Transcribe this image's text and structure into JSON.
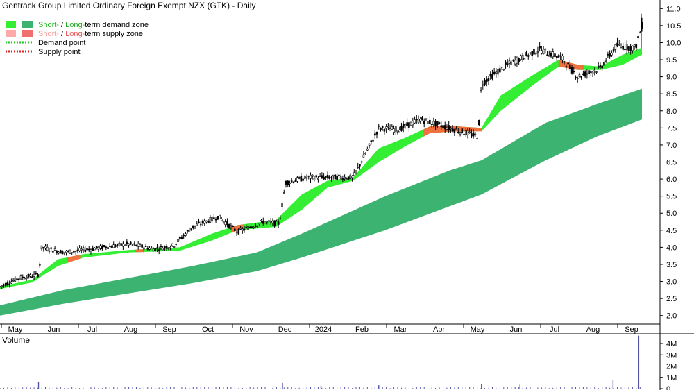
{
  "chart_data": {
    "type": "candlestick",
    "title": "Gentrack Group Limited Ordinary Foreign Exempt NZX (GTK) - Daily",
    "volume_label": "Volume",
    "ylim": [
      1.75,
      11.25
    ],
    "y_ticks": [
      "2.0",
      "2.5",
      "3.0",
      "3.5",
      "4.0",
      "4.5",
      "5.0",
      "5.5",
      "6.0",
      "6.5",
      "7.0",
      "7.5",
      "8.0",
      "8.5",
      "9.0",
      "9.5",
      "10.0",
      "10.5",
      "11.0"
    ],
    "volume_ticks": [
      "4M",
      "3M",
      "2M",
      "1M",
      "0"
    ],
    "volume_ylim": [
      0,
      4800000
    ],
    "x_labels": [
      "May",
      "Jun",
      "Jul",
      "Aug",
      "Sep",
      "Oct",
      "Nov",
      "Dec",
      "2024",
      "Feb",
      "Mar",
      "Apr",
      "May",
      "Jun",
      "Jul",
      "Aug",
      "Sep"
    ],
    "legend": [
      {
        "short": "Short-",
        "sep": " / ",
        "long": "Long-",
        "rest": "term demand zone",
        "short_color": "#33ee33",
        "long_color": "#3cb371",
        "text_color": "#22aa22"
      },
      {
        "short": "Short-",
        "sep": " / ",
        "long": "Long-",
        "rest": "term supply zone",
        "short_color": "#ffaaaa",
        "long_color": "#f07070",
        "text_color": "#ee5555"
      },
      {
        "label": "Demand point",
        "color": "#22cc22"
      },
      {
        "label": "Supply point",
        "color": "#dd2222"
      }
    ],
    "price_path": [
      {
        "t": 0,
        "price": 2.85
      },
      {
        "t": 0.03,
        "price": 3.1
      },
      {
        "t": 0.06,
        "price": 3.2
      },
      {
        "t": 0.065,
        "price": 4.0
      },
      {
        "t": 0.1,
        "price": 3.85
      },
      {
        "t": 0.2,
        "price": 4.1
      },
      {
        "t": 0.24,
        "price": 3.95
      },
      {
        "t": 0.27,
        "price": 4.05
      },
      {
        "t": 0.3,
        "price": 4.6
      },
      {
        "t": 0.34,
        "price": 4.9
      },
      {
        "t": 0.37,
        "price": 4.45
      },
      {
        "t": 0.41,
        "price": 4.75
      },
      {
        "t": 0.435,
        "price": 4.7
      },
      {
        "t": 0.445,
        "price": 5.9
      },
      {
        "t": 0.48,
        "price": 6.05
      },
      {
        "t": 0.55,
        "price": 6.05
      },
      {
        "t": 0.59,
        "price": 7.5
      },
      {
        "t": 0.62,
        "price": 7.45
      },
      {
        "t": 0.655,
        "price": 7.75
      },
      {
        "t": 0.7,
        "price": 7.5
      },
      {
        "t": 0.745,
        "price": 7.25
      },
      {
        "t": 0.75,
        "price": 8.8
      },
      {
        "t": 0.79,
        "price": 9.35
      },
      {
        "t": 0.84,
        "price": 9.8
      },
      {
        "t": 0.875,
        "price": 9.55
      },
      {
        "t": 0.9,
        "price": 9.0
      },
      {
        "t": 0.935,
        "price": 9.25
      },
      {
        "t": 0.96,
        "price": 9.9
      },
      {
        "t": 0.99,
        "price": 9.85
      },
      {
        "t": 1,
        "price": 10.5
      }
    ],
    "short_zone": [
      {
        "t": 0,
        "upper": 2.85,
        "lower": 2.78
      },
      {
        "t": 0.05,
        "upper": 3.05,
        "lower": 2.97
      },
      {
        "t": 0.09,
        "upper": 3.65,
        "lower": 3.45
      },
      {
        "t": 0.13,
        "upper": 3.8,
        "lower": 3.7
      },
      {
        "t": 0.2,
        "upper": 3.92,
        "lower": 3.85
      },
      {
        "t": 0.28,
        "upper": 4.0,
        "lower": 3.9
      },
      {
        "t": 0.33,
        "upper": 4.4,
        "lower": 4.2
      },
      {
        "t": 0.37,
        "upper": 4.65,
        "lower": 4.5
      },
      {
        "t": 0.43,
        "upper": 4.8,
        "lower": 4.6
      },
      {
        "t": 0.47,
        "upper": 5.55,
        "lower": 5.1
      },
      {
        "t": 0.51,
        "upper": 5.95,
        "lower": 5.75
      },
      {
        "t": 0.55,
        "upper": 6.05,
        "lower": 5.95
      },
      {
        "t": 0.59,
        "upper": 6.9,
        "lower": 6.5
      },
      {
        "t": 0.63,
        "upper": 7.2,
        "lower": 6.95
      },
      {
        "t": 0.67,
        "upper": 7.55,
        "lower": 7.35
      },
      {
        "t": 0.71,
        "upper": 7.55,
        "lower": 7.4
      },
      {
        "t": 0.75,
        "upper": 7.5,
        "lower": 7.4
      },
      {
        "t": 0.78,
        "upper": 8.45,
        "lower": 8.0
      },
      {
        "t": 0.83,
        "upper": 9.05,
        "lower": 8.75
      },
      {
        "t": 0.87,
        "upper": 9.5,
        "lower": 9.3
      },
      {
        "t": 0.9,
        "upper": 9.35,
        "lower": 9.2
      },
      {
        "t": 0.935,
        "upper": 9.3,
        "lower": 9.2
      },
      {
        "t": 0.97,
        "upper": 9.65,
        "lower": 9.35
      },
      {
        "t": 1,
        "upper": 9.85,
        "lower": 9.65
      }
    ],
    "long_zone": [
      {
        "t": 0,
        "upper": 2.3,
        "lower": 2.0
      },
      {
        "t": 0.1,
        "upper": 2.75,
        "lower": 2.35
      },
      {
        "t": 0.2,
        "upper": 3.1,
        "lower": 2.65
      },
      {
        "t": 0.3,
        "upper": 3.45,
        "lower": 2.95
      },
      {
        "t": 0.4,
        "upper": 3.85,
        "lower": 3.3
      },
      {
        "t": 0.47,
        "upper": 4.4,
        "lower": 3.7
      },
      {
        "t": 0.6,
        "upper": 5.5,
        "lower": 4.5
      },
      {
        "t": 0.7,
        "upper": 6.25,
        "lower": 5.2
      },
      {
        "t": 0.75,
        "upper": 6.55,
        "lower": 5.55
      },
      {
        "t": 0.85,
        "upper": 7.65,
        "lower": 6.55
      },
      {
        "t": 0.93,
        "upper": 8.2,
        "lower": 7.25
      },
      {
        "t": 1,
        "upper": 8.65,
        "lower": 7.75
      }
    ],
    "volume_spikes": [
      {
        "t": 0.06,
        "value": 600000
      },
      {
        "t": 0.44,
        "value": 500000
      },
      {
        "t": 0.5,
        "value": 250000
      },
      {
        "t": 0.59,
        "value": 300000
      },
      {
        "t": 0.75,
        "value": 400000
      },
      {
        "t": 0.81,
        "value": 350000
      },
      {
        "t": 0.955,
        "value": 750000
      },
      {
        "t": 0.995,
        "value": 4700000
      }
    ]
  }
}
